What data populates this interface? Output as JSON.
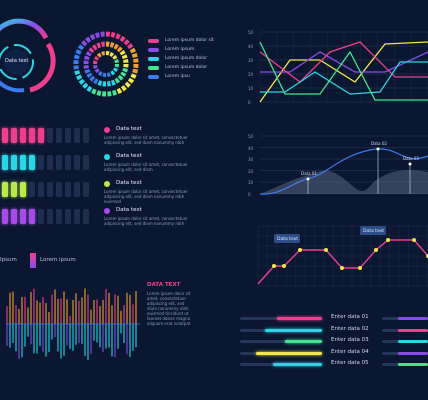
{
  "colors": {
    "background": "#0b1730",
    "panel": "#0f1f3d",
    "cyan": "#27d7e8",
    "pink": "#ef3f8c",
    "purple": "#8a4be8",
    "yellow": "#f1e84a",
    "green": "#43e58f",
    "orange": "#f5a12b",
    "blue": "#3c7bf0"
  },
  "ring_widget": {
    "label": "Data text"
  },
  "wheel_legend": {
    "items": [
      {
        "label": "Lorem ipsum dolor sit",
        "color": "#ef3f8c"
      },
      {
        "label": "Lorem ipsum",
        "color": "#8a4be8"
      },
      {
        "label": "Lorem ipsum dolor",
        "color": "#27d7e8"
      },
      {
        "label": "Lorem ipsum dolor",
        "color": "#43e58f"
      },
      {
        "label": "Lorem ipsu",
        "color": "#3c7bf0"
      }
    ]
  },
  "line_chart_top": {
    "y_ticks": [
      "50",
      "40",
      "30",
      "20",
      "10",
      "0"
    ]
  },
  "bar_rows": {
    "items": [
      {
        "title": "Data text",
        "text": "Lorem ipsum dolor sit amet, consectetuer adipiscing elit, sed diam nonummy nibh",
        "filled": 5,
        "color": "#ef3f8c"
      },
      {
        "title": "Data text",
        "text": "Lorem ipsum dolor sit amet, consectetuer adipiscing elit, sed diam",
        "filled": 4,
        "color": "#27d7e8"
      },
      {
        "title": "Data text",
        "text": "Lorem ipsum dolor sit amet, consectetuer adipiscing elit, sed diam nonummy nibh euismod",
        "filled": 3,
        "color": "#bde84a"
      },
      {
        "title": "Data text",
        "text": "Lorem ipsum dolor sit amet, consectetuer adipiscing elit, sed diam nonummy nibh",
        "filled": 4,
        "color": "#a64be8"
      }
    ]
  },
  "area_chart": {
    "y_ticks": [
      "50",
      "40",
      "30",
      "20",
      "10",
      "0"
    ],
    "labels": [
      "Data 01",
      "Data 02",
      "Data 03"
    ]
  },
  "grid_chart": {
    "labels": [
      "Data text",
      "Data text"
    ]
  },
  "gradient_legend": {
    "items": [
      {
        "label": "Ipsum"
      },
      {
        "label": "Lorem ipsum"
      }
    ]
  },
  "wave_panel": {
    "title": "DATA TEXT",
    "text": "Lorem ipsum dolor sit amet, consectetuer adipiscing elit, sed diam nonummy nibh euismod tincidunt ut laoreet dolore magna aliquam erat volutpat"
  },
  "enter_rows": {
    "items": [
      {
        "label": "Enter data 01",
        "fill": 0.55,
        "color": "#ef3f8c",
        "right_color": "#8a4be8"
      },
      {
        "label": "Enter data 02",
        "fill": 0.7,
        "color": "#27d7e8",
        "right_color": "#ef3f8c"
      },
      {
        "label": "Enter data 03",
        "fill": 0.45,
        "color": "#43e58f",
        "right_color": "#27d7e8"
      },
      {
        "label": "Enter data 04",
        "fill": 0.8,
        "color": "#f1e84a",
        "right_color": "#8a4be8"
      },
      {
        "label": "Enter data 05",
        "fill": 0.6,
        "color": "#27d7e8",
        "right_color": "#43e58f"
      }
    ]
  }
}
